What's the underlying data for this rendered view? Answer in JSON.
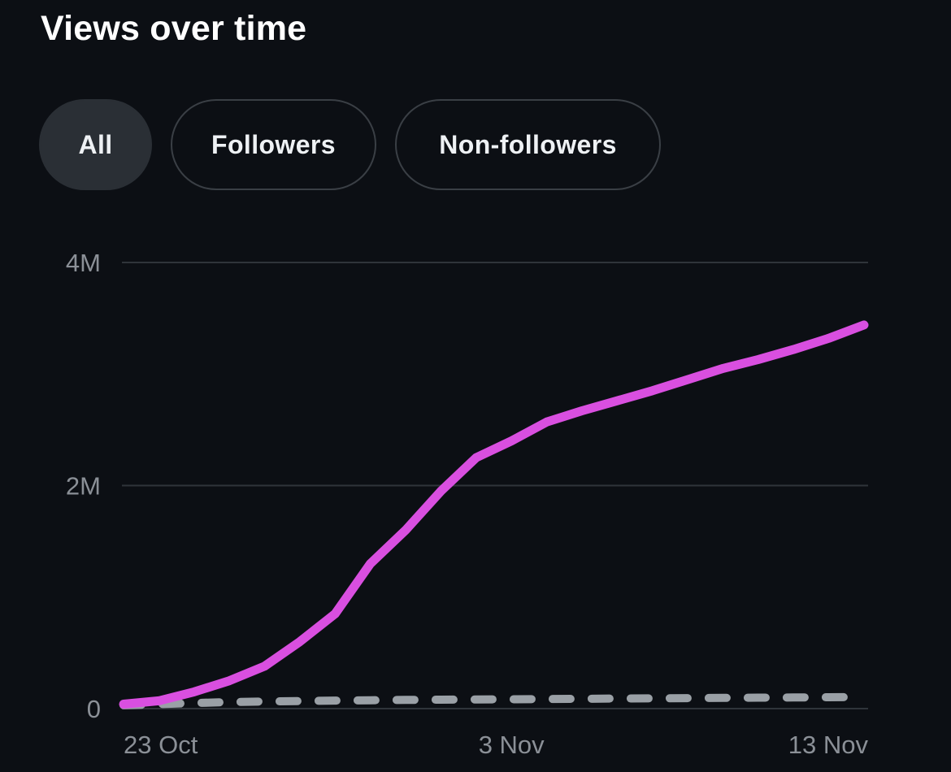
{
  "header": {
    "title": "Views over time"
  },
  "filters": {
    "items": [
      {
        "label": "All",
        "active": true
      },
      {
        "label": "Followers",
        "active": false
      },
      {
        "label": "Non-followers",
        "active": false
      }
    ]
  },
  "colors": {
    "background": "#0c0f14",
    "series_all": "#d94fe0",
    "series_followers": "#9aa0a6",
    "gridline": "#2f343a",
    "axis_text": "#8b9097",
    "pill_active_bg": "#2a2f35",
    "pill_border": "#3a3f45"
  },
  "chart_data": {
    "type": "line",
    "title": "Views over time",
    "xlabel": "",
    "ylabel": "",
    "x": [
      0,
      1,
      2,
      3,
      4,
      5,
      6,
      7,
      8,
      9,
      10,
      11,
      12,
      13,
      14,
      15,
      16,
      17,
      18,
      19,
      20,
      21
    ],
    "xticks": [
      {
        "index": 0,
        "label": "23 Oct"
      },
      {
        "index": 11,
        "label": "3 Nov"
      },
      {
        "index": 21,
        "label": "13 Nov"
      }
    ],
    "yticks": [
      {
        "value": 0,
        "label": "0"
      },
      {
        "value": 2000000,
        "label": "2M"
      },
      {
        "value": 4000000,
        "label": "4M"
      }
    ],
    "ylim": [
      0,
      4000000
    ],
    "grid": true,
    "series": [
      {
        "name": "All",
        "style": "solid",
        "values": [
          40000,
          70000,
          150000,
          250000,
          380000,
          600000,
          850000,
          1300000,
          1600000,
          1950000,
          2250000,
          2400000,
          2570000,
          2670000,
          2760000,
          2850000,
          2950000,
          3050000,
          3130000,
          3220000,
          3320000,
          3440000
        ]
      },
      {
        "name": "Followers",
        "style": "dashed",
        "values": [
          30000,
          40000,
          50000,
          58000,
          64000,
          68000,
          72000,
          75000,
          78000,
          80000,
          82000,
          84000,
          86000,
          88000,
          90000,
          92000,
          94000,
          96000,
          98000,
          100000,
          102000,
          104000
        ]
      }
    ]
  }
}
